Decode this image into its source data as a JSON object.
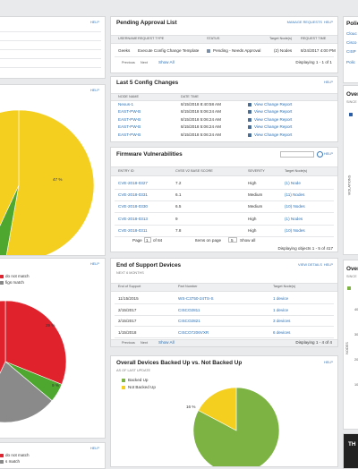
{
  "left": {
    "help_1": "HELP",
    "help_2": "HELP",
    "pie1_label": "47 %",
    "help_3": "HELP",
    "legend_3": [
      "do not match",
      "figs match"
    ],
    "pie2_labels": [
      "29 %",
      "9 %"
    ],
    "help_4": "HELP",
    "legend_4": [
      "do not match",
      "s match"
    ]
  },
  "pending_approval": {
    "title": "Pending Approval List",
    "actions": [
      "MANAGE REQUESTS",
      "HELP"
    ],
    "columns": [
      "USERNAME",
      "REQUEST TYPE",
      "STATUS",
      "Target Node(s)",
      "REQUEST TIME"
    ],
    "rows": [
      [
        "Geeks",
        "Execute Config Change Template",
        "Pending - Needs Approval",
        "(2) Nodes",
        "8/24/2017 4:00 PM"
      ]
    ],
    "pager": [
      "Previous",
      "Next",
      "Show All"
    ],
    "displaying": "Displaying 1 - 1 of 1"
  },
  "config_changes": {
    "title": "Last 5 Config Changes",
    "help": "HELP",
    "columns": [
      "NODE NAME",
      "DATE TIME"
    ],
    "rows": [
      [
        "Nexus-1",
        "8/15/2018 8:40:58 AM",
        "View Change Report"
      ],
      [
        "EAST-PW-B",
        "8/15/2018 5:06:24 AM",
        "View Change Report"
      ],
      [
        "EAST-PW-B",
        "8/15/2018 5:06:24 AM",
        "View Change Report"
      ],
      [
        "EAST-PW-B",
        "8/15/2018 5:06:24 AM",
        "View Change Report"
      ],
      [
        "EAST-PW-B",
        "8/15/2018 5:06:24 AM",
        "View Change Report"
      ]
    ]
  },
  "firmware": {
    "title": "Firmware Vulnerabilities",
    "help": "HELP",
    "columns": [
      "ENTRY ID",
      "CVSS V2 BASE SCORE",
      "SEVERITY",
      "Target Node(s)"
    ],
    "rows": [
      [
        "CVE-2018-0327",
        "7.2",
        "High",
        "(1) Node"
      ],
      [
        "CVE-2018-0331",
        "6.1",
        "Medium",
        "(11) Nodes"
      ],
      [
        "CVE-2018-0330",
        "6.5",
        "Medium",
        "(10) Nodes"
      ],
      [
        "CVE-2018-0313",
        "9",
        "High",
        "(1) Nodes"
      ],
      [
        "CVE-2018-0311",
        "7.8",
        "High",
        "(10) Nodes"
      ]
    ],
    "pager": [
      "Page",
      "1",
      "of 84",
      "Items on page",
      "5",
      "Show all"
    ],
    "displaying": "Displaying objects 1 - 5 of 417"
  },
  "end_of_support": {
    "title": "End of Support Devices",
    "actions": [
      "VIEW DETAILS",
      "HELP"
    ],
    "subtitle": "NEXT 6 MONTHS",
    "columns": [
      "End of Support",
      "Part Number",
      "Target Node(s)"
    ],
    "rows": [
      [
        "11/15/2015",
        "WS-C3750-24TS-S",
        "1 device"
      ],
      [
        "2/15/2017",
        "CISCO2811",
        "1 device"
      ],
      [
        "2/15/2017",
        "CISCO2821",
        "3 devices"
      ],
      [
        "1/15/2018",
        "CISCO7206VXR",
        "6 devices"
      ]
    ],
    "pager": [
      "Previous",
      "Next",
      "Show All"
    ],
    "displaying": "Displaying 1 - 4 of 4"
  },
  "backup": {
    "title": "Overall Devices Backed Up vs. Not Backed Up",
    "help": "HELP",
    "subtitle": "AS OF LAST UPDATE",
    "legend": [
      "Backed Up",
      "Not Backed Up"
    ],
    "pie_label": "16 %"
  },
  "right": {
    "panel_1": [
      "Polic",
      "Clouc",
      "Cisco",
      "CISP",
      "Polic"
    ],
    "panel_2": [
      "Over",
      "SINCE",
      "VIOLATIONS"
    ],
    "panel_3": [
      "Over",
      "SINCE",
      "40",
      "30",
      "20",
      "10",
      "NODES"
    ],
    "panel_4": "TH"
  }
}
